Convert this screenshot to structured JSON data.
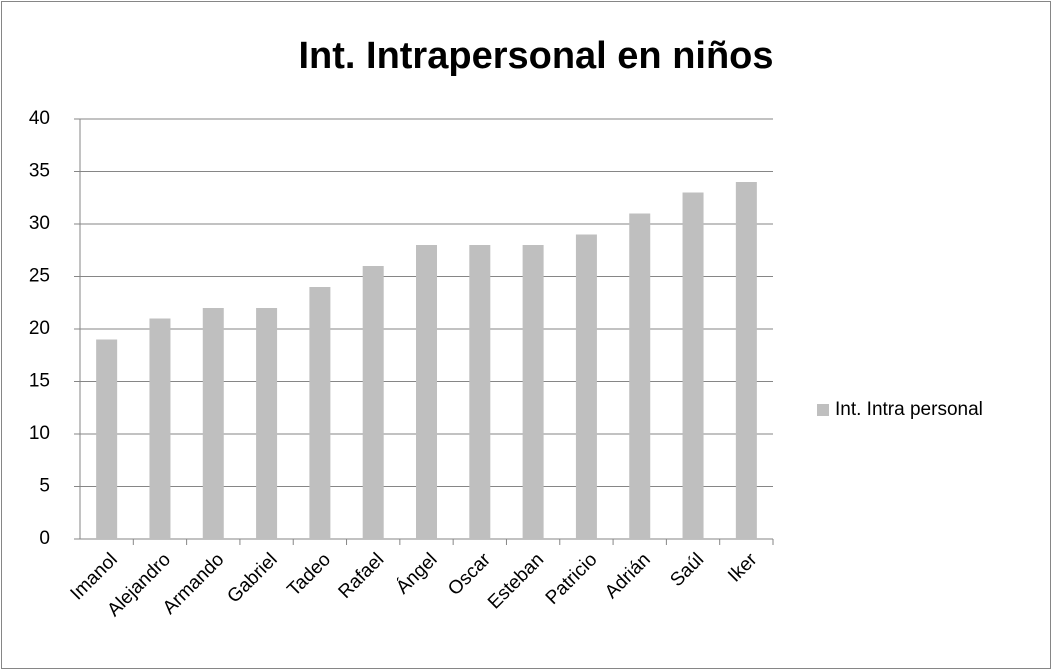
{
  "chart_data": {
    "type": "bar",
    "title": "Int. Intrapersonal en niños",
    "categories": [
      "Imanol",
      "Alejandro",
      "Armando",
      "Gabriel",
      "Tadeo",
      "Rafael",
      "Ángel",
      "Oscar",
      "Esteban",
      "Patricio",
      "Adrián",
      "Saúl",
      "Iker"
    ],
    "series": [
      {
        "name": "Int. Intra personal",
        "color": "#bfbfbf",
        "values": [
          19,
          21,
          22,
          22,
          24,
          26,
          28,
          28,
          28,
          29,
          31,
          33,
          34
        ]
      }
    ],
    "ylim": [
      0,
      40
    ],
    "yticks": [
      0,
      5,
      10,
      15,
      20,
      25,
      30,
      35,
      40
    ],
    "grid": true,
    "legend": "right"
  }
}
